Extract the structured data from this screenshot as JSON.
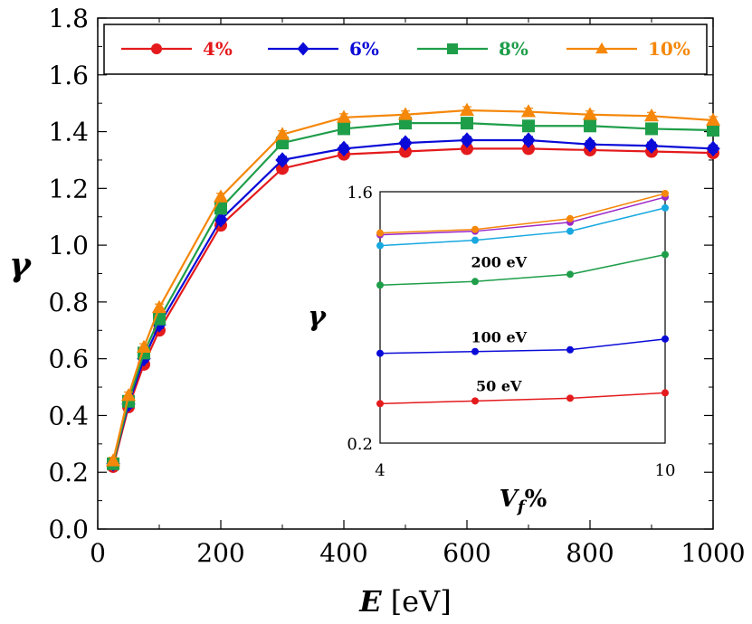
{
  "chart_data": [
    {
      "type": "line",
      "title": "",
      "xlabel": "E",
      "xlabel_unit": "[eV]",
      "ylabel": "γ",
      "xlim": [
        0,
        1000
      ],
      "ylim": [
        0.0,
        1.8
      ],
      "x_ticks": [
        "0",
        "200",
        "400",
        "600",
        "800",
        "1000"
      ],
      "y_ticks": [
        "0.0",
        "0.2",
        "0.4",
        "0.6",
        "0.8",
        "1.0",
        "1.2",
        "1.4",
        "1.6",
        "1.8"
      ],
      "grid": false,
      "legend_position": "top",
      "x": [
        25,
        50,
        75,
        100,
        200,
        300,
        400,
        500,
        600,
        700,
        800,
        900,
        1000
      ],
      "series": [
        {
          "name": "4%",
          "color": "#e41a1c",
          "marker": "circle",
          "values": [
            0.22,
            0.43,
            0.58,
            0.7,
            1.07,
            1.27,
            1.32,
            1.33,
            1.34,
            1.34,
            1.335,
            1.33,
            1.325
          ]
        },
        {
          "name": "6%",
          "color": "#0a0ad8",
          "marker": "diamond",
          "values": [
            0.23,
            0.44,
            0.6,
            0.72,
            1.09,
            1.3,
            1.34,
            1.36,
            1.37,
            1.37,
            1.355,
            1.35,
            1.34
          ]
        },
        {
          "name": "8%",
          "color": "#1f9e4a",
          "marker": "square",
          "values": [
            0.23,
            0.45,
            0.62,
            0.74,
            1.13,
            1.36,
            1.41,
            1.43,
            1.43,
            1.42,
            1.42,
            1.41,
            1.405
          ]
        },
        {
          "name": "10%",
          "color": "#f5870a",
          "marker": "triangle",
          "values": [
            0.24,
            0.47,
            0.64,
            0.78,
            1.17,
            1.39,
            1.45,
            1.46,
            1.475,
            1.47,
            1.46,
            1.455,
            1.44
          ]
        }
      ]
    },
    {
      "type": "line",
      "title": "",
      "xlabel": "V",
      "xlabel_sub": "f",
      "xlabel_suffix": "%",
      "ylabel": "γ",
      "xlim": [
        4,
        10
      ],
      "ylim": [
        0.2,
        1.6
      ],
      "x_ticks": [
        "4",
        "10"
      ],
      "y_ticks": [
        "0.2",
        "1.6"
      ],
      "grid": false,
      "x": [
        4,
        6,
        8,
        10
      ],
      "series": [
        {
          "label": "50 eV",
          "color": "#e41a1c",
          "values": [
            0.42,
            0.435,
            0.45,
            0.48
          ]
        },
        {
          "label": "100 eV",
          "color": "#0a0ad8",
          "values": [
            0.7,
            0.71,
            0.72,
            0.78
          ]
        },
        {
          "label": "200 eV",
          "color": "#1f9e4a",
          "values": [
            1.08,
            1.1,
            1.14,
            1.25
          ]
        },
        {
          "label": "",
          "color": "#17a8e0",
          "values": [
            1.3,
            1.33,
            1.38,
            1.51
          ]
        },
        {
          "label": "",
          "color": "#9b27c8",
          "values": [
            1.36,
            1.38,
            1.43,
            1.57
          ]
        },
        {
          "label": "",
          "color": "#f5870a",
          "values": [
            1.37,
            1.39,
            1.45,
            1.59
          ]
        }
      ]
    }
  ]
}
